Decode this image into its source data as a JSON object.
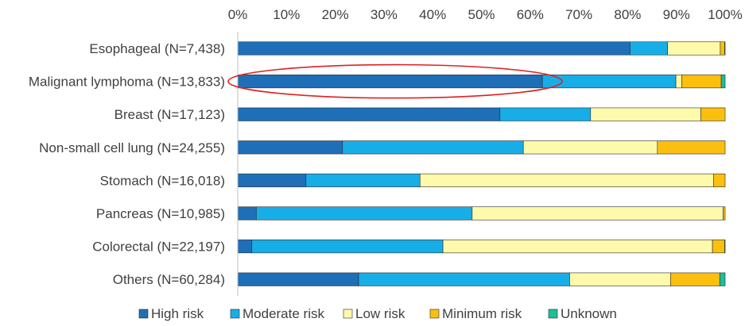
{
  "chart_data": {
    "type": "bar",
    "orientation": "horizontal",
    "stacked": "percent",
    "categories": [
      "Esophageal (N=7,438)",
      "Malignant lymphoma (N=13,833)",
      "Breast (N=17,123)",
      "Non-small cell lung (N=24,255)",
      "Stomach (N=16,018)",
      "Pancreas (N=10,985)",
      "Colorectal (N=22,197)",
      "Others (N=60,284)"
    ],
    "series": [
      {
        "name": "High risk",
        "color": "#1e6fb8",
        "values": [
          80.5,
          62.5,
          53.8,
          21.5,
          14.0,
          3.8,
          2.9,
          24.8
        ]
      },
      {
        "name": "Moderate risk",
        "color": "#17aee8",
        "values": [
          7.7,
          27.4,
          18.6,
          37.1,
          23.4,
          44.3,
          39.2,
          43.3
        ]
      },
      {
        "name": "Low risk",
        "color": "#fdfaab",
        "values": [
          10.8,
          1.2,
          22.6,
          27.5,
          60.2,
          51.5,
          55.3,
          20.7
        ]
      },
      {
        "name": "Minimum risk",
        "color": "#fbbf0f",
        "values": [
          0.9,
          8.1,
          5.0,
          13.9,
          2.4,
          0.4,
          2.5,
          10.1
        ]
      },
      {
        "name": "Unknown",
        "color": "#1bbf9a",
        "values": [
          0.1,
          0.8,
          0.0,
          0.0,
          0.0,
          0.0,
          0.1,
          1.1
        ]
      }
    ],
    "x_ticks": [
      "0%",
      "10%",
      "20%",
      "30%",
      "40%",
      "50%",
      "60%",
      "70%",
      "80%",
      "90%",
      "100%"
    ],
    "xlim": [
      0,
      100
    ],
    "x_axis_position": "top",
    "grid": false,
    "legend_position": "bottom",
    "annotation": {
      "shape": "ellipse",
      "color": "#e02020",
      "target": "Malignant lymphoma (N=13,833)"
    }
  }
}
